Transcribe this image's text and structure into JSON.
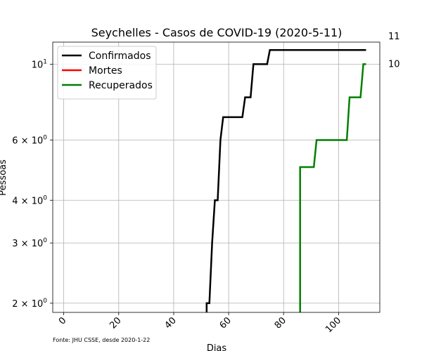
{
  "chart_data": {
    "type": "line",
    "title": "Seychelles - Casos de COVID-19 (2020-5-11)",
    "xlabel": "Dias",
    "ylabel": "Pessoas",
    "yscale": "log",
    "xlim": [
      -4,
      115
    ],
    "ylim": [
      1.88,
      11.6
    ],
    "grid": true,
    "legend_position": "top-left",
    "x_ticks": [
      {
        "value": 0,
        "label": "0"
      },
      {
        "value": 20,
        "label": "20"
      },
      {
        "value": 40,
        "label": "40"
      },
      {
        "value": 60,
        "label": "60"
      },
      {
        "value": 80,
        "label": "80"
      },
      {
        "value": 100,
        "label": "100"
      }
    ],
    "y_ticks": [
      {
        "value": 2,
        "base": "2 × 10",
        "exp": "0"
      },
      {
        "value": 3,
        "base": "3 × 10",
        "exp": "0"
      },
      {
        "value": 4,
        "base": "4 × 10",
        "exp": "0"
      },
      {
        "value": 6,
        "base": "6 × 10",
        "exp": "0"
      },
      {
        "value": 10,
        "base": "10",
        "exp": "1"
      }
    ],
    "series": [
      {
        "name": "Confirmados",
        "color": "#000000",
        "x": [
          52,
          52,
          53,
          54,
          55,
          56,
          57,
          58,
          65,
          66,
          68,
          69,
          74,
          75,
          110
        ],
        "y": [
          1.85,
          2,
          2,
          3,
          4,
          4,
          6,
          7,
          7,
          8,
          8,
          10,
          10,
          11,
          11
        ]
      },
      {
        "name": "Mortes",
        "color": "#ff0000",
        "x": [],
        "y": []
      },
      {
        "name": "Recuperados",
        "color": "#008000",
        "x": [
          86,
          86,
          91,
          92,
          103,
          104,
          108,
          109,
          110
        ],
        "y": [
          1.85,
          5,
          5,
          6,
          6,
          8,
          8,
          10,
          10
        ]
      }
    ],
    "end_labels": [
      {
        "text": "11",
        "value": 11
      },
      {
        "text": "10",
        "value": 10
      }
    ],
    "source_note": "Fonte: JHU CSSE, desde 2020-1-22"
  }
}
